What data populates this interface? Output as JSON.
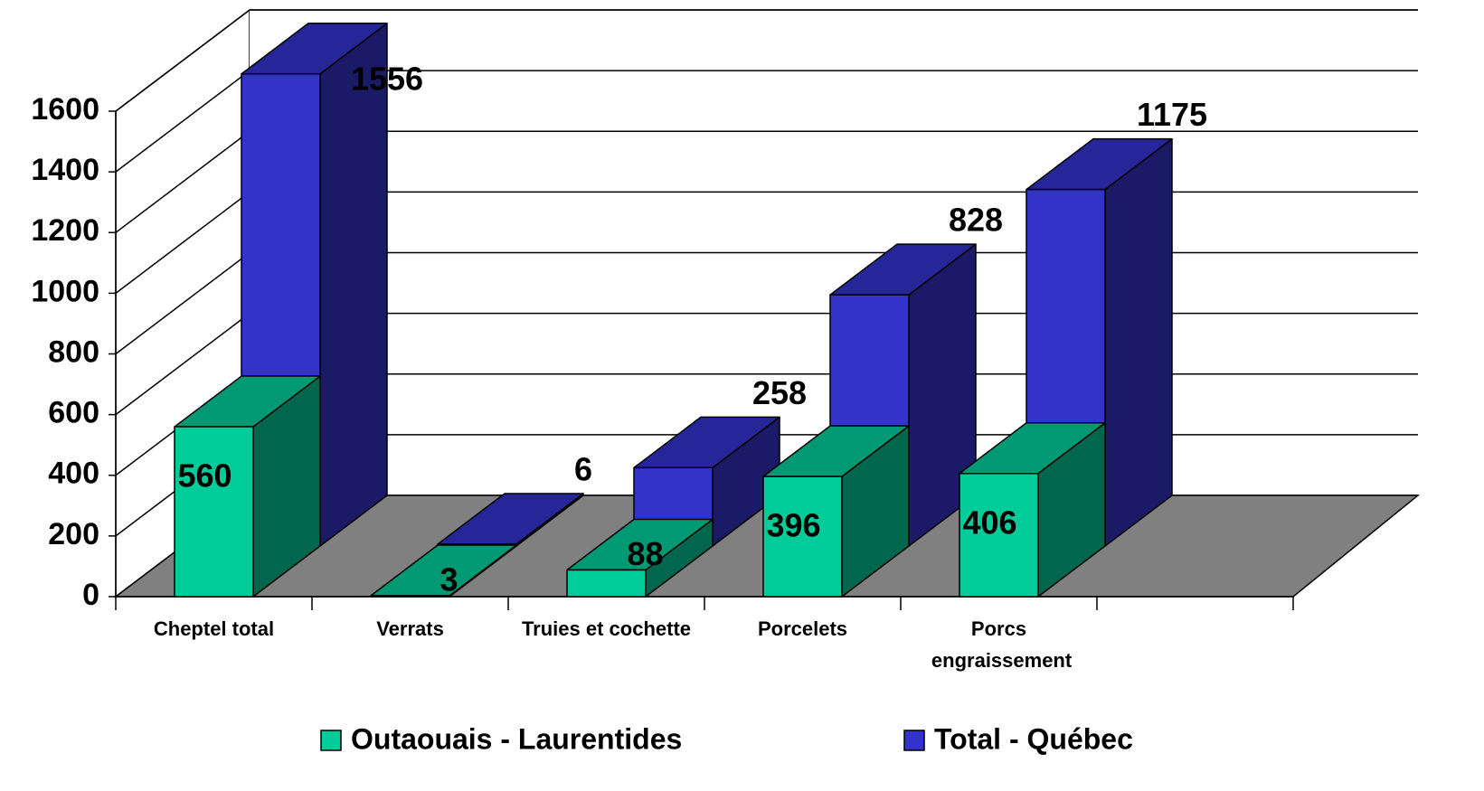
{
  "chart_data": {
    "type": "bar3d",
    "categories": [
      "Cheptel total",
      "Verrats",
      "Truies et cochette",
      "Porcelets",
      "Porcs engraissement",
      null
    ],
    "series": [
      {
        "name": "Outaouais - Laurentides",
        "color": "#00CC99",
        "values": [
          560,
          3,
          88,
          396,
          406,
          null
        ]
      },
      {
        "name": "Total - Québec",
        "color": "#3333CC",
        "values": [
          1556,
          6,
          258,
          828,
          1175,
          null
        ]
      }
    ],
    "ylim": [
      0,
      1600
    ],
    "yticks": [
      0,
      200,
      400,
      600,
      800,
      1000,
      1200,
      1400,
      1600
    ],
    "grid": true,
    "legend": "bottom"
  }
}
